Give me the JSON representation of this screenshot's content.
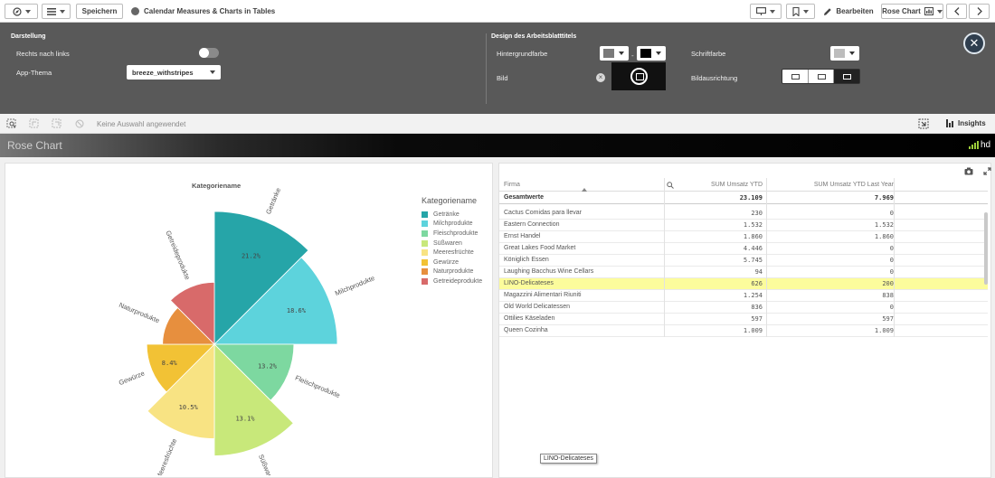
{
  "toolbar": {
    "save_label": "Speichern",
    "app_title": "Calendar Measures & Charts in Tables",
    "edit_label": "Bearbeiten",
    "sheet_name": "Rose Chart"
  },
  "properties": {
    "display_heading": "Darstellung",
    "rtl_label": "Rechts nach links",
    "app_theme_label": "App-Thema",
    "app_theme_value": "breeze_withstripes",
    "sheet_title_heading": "Design des Arbeitsblatttitels",
    "bg_color_label": "Hintergrundfarbe",
    "font_color_label": "Schriftfarbe",
    "image_label": "Bild",
    "image_align_label": "Bildausrichtung"
  },
  "selection": {
    "text": "Keine Auswahl angewendet",
    "insights_label": "Insights"
  },
  "sheet": {
    "title": "Rose Chart",
    "logo_text": "hd"
  },
  "chart": {
    "title": "Kategoriename",
    "legend_title": "Kategoriename"
  },
  "chart_data": {
    "type": "pie",
    "title": "Kategoriename",
    "legend_placement": "right",
    "categories": [
      "Getränke",
      "Milchprodukte",
      "Fleischprodukte",
      "Süßwaren",
      "Meeresfrüchte",
      "Gewürze",
      "Naturprodukte",
      "Getreideprodukte"
    ],
    "values": [
      21.2,
      18.6,
      13.2,
      13.1,
      10.5,
      8.4,
      null,
      null
    ],
    "value_labels": [
      "21.2%",
      "18.6%",
      "13.2%",
      "13.1%",
      "10.5%",
      "8.4%",
      "",
      ""
    ],
    "radius_fraction": [
      1.0,
      0.925,
      0.598,
      0.84,
      0.711,
      0.509,
      0.39,
      0.467
    ],
    "colors": [
      "#26a5a8",
      "#5dd3dc",
      "#7dd8a0",
      "#c8e87a",
      "#f8e383",
      "#f2c235",
      "#e78f3e",
      "#d86a6a"
    ]
  },
  "table": {
    "headers": [
      "Firma",
      "SUM Umsatz YTD",
      "SUM Umsatz YTD Last Year"
    ],
    "totals": [
      "Gesamtwerte",
      "23.109",
      "7.969"
    ],
    "rows": [
      [
        "Cactus Comidas para llevar",
        "230",
        "0"
      ],
      [
        "Eastern Connection",
        "1.532",
        "1.532"
      ],
      [
        "Ernst Handel",
        "1.860",
        "1.860"
      ],
      [
        "Great Lakes Food Market",
        "4.446",
        "0"
      ],
      [
        "Königlich Essen",
        "5.745",
        "0"
      ],
      [
        "Laughing Bacchus Wine Cellars",
        "94",
        "0"
      ],
      [
        "LINO-Delicateses",
        "626",
        "200"
      ],
      [
        "Magazzini Alimentari Riuniti",
        "1.254",
        "838"
      ],
      [
        "Old World Delicatessen",
        "836",
        "0"
      ],
      [
        "Ottilies Käseladen",
        "597",
        "597"
      ],
      [
        "Queen Cozinha",
        "1.009",
        "1.009"
      ]
    ],
    "highlight_row": 6,
    "tooltip": "LINO-Delicateses"
  }
}
